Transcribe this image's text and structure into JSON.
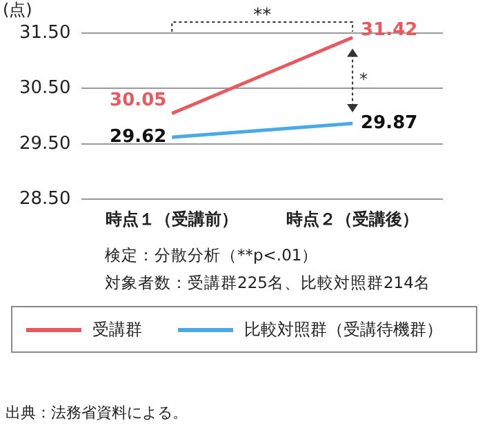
{
  "chart_data": {
    "type": "line",
    "ylabel": "(点)",
    "categories": [
      "時点１（受講前）",
      "時点２（受講後）"
    ],
    "series": [
      {
        "name": "受講群",
        "color": "#e8585e",
        "values": [
          30.05,
          31.42
        ]
      },
      {
        "name": "比較対照群（受講待機群）",
        "color": "#4aa9e6",
        "values": [
          29.62,
          29.87
        ]
      }
    ],
    "ylim": [
      28.5,
      31.5
    ],
    "yticks": [
      {
        "value": 28.5,
        "label": "28.50"
      },
      {
        "value": 29.5,
        "label": "29.50"
      },
      {
        "value": 30.5,
        "label": "30.50"
      },
      {
        "value": 31.5,
        "label": "31.50"
      }
    ],
    "grid": "y",
    "legend": "bottom",
    "marker": "none",
    "data_labels": true,
    "annotations": [
      "**",
      "*",
      "検定：分散分析（**p<.01）",
      "対象者数：受講群225名、比較対照群214名",
      "出典：法務省資料による。"
    ]
  }
}
